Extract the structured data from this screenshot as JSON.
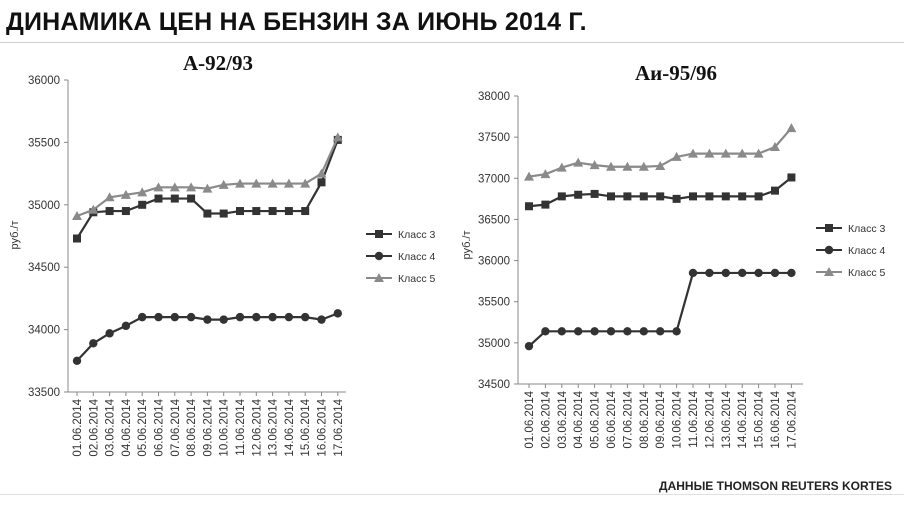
{
  "page": {
    "title": "ДИНАМИКА ЦЕН НА БЕНЗИН ЗА ИЮНЬ 2014 Г.",
    "source": "ДАННЫЕ THOMSON REUTERS KORTES"
  },
  "chart_data": [
    {
      "type": "line",
      "title": "А-92/93",
      "ylabel": "руб./т",
      "xlabel": "",
      "ylim": [
        33500,
        36000
      ],
      "yticks": [
        33500,
        34000,
        34500,
        35000,
        35500,
        36000
      ],
      "legend_position": "right",
      "grid": false,
      "categories": [
        "01.06.2014",
        "02.06.2014",
        "03.06.2014",
        "04.06.2014",
        "05.06.2014",
        "06.06.2014",
        "07.06.2014",
        "08.06.2014",
        "09.06.2014",
        "10.06.2014",
        "11.06.2014",
        "12.06.2014",
        "13.06.2014",
        "14.06.2014",
        "15.06.2014",
        "16.06.2014",
        "17.06.2014"
      ],
      "series": [
        {
          "name": "Класс 3",
          "marker": "square",
          "color": "#333333",
          "values": [
            34730,
            34940,
            34950,
            34950,
            35000,
            35050,
            35050,
            35050,
            34930,
            34930,
            34950,
            34950,
            34950,
            34950,
            34950,
            35180,
            35520
          ]
        },
        {
          "name": "Класс 4",
          "marker": "circle",
          "color": "#333333",
          "values": [
            33750,
            33890,
            33970,
            34030,
            34100,
            34100,
            34100,
            34100,
            34080,
            34080,
            34100,
            34100,
            34100,
            34100,
            34100,
            34080,
            34130
          ]
        },
        {
          "name": "Класс 5",
          "marker": "triangle",
          "color": "#8a8a8a",
          "values": [
            34910,
            34960,
            35060,
            35080,
            35100,
            35140,
            35140,
            35140,
            35130,
            35160,
            35170,
            35170,
            35170,
            35170,
            35170,
            35250,
            35540
          ]
        }
      ]
    },
    {
      "type": "line",
      "title": "Аи-95/96",
      "ylabel": "руб./т",
      "xlabel": "",
      "ylim": [
        34500,
        38000
      ],
      "yticks": [
        34500,
        35000,
        35500,
        36000,
        36500,
        37000,
        37500,
        38000
      ],
      "legend_position": "right",
      "grid": false,
      "categories": [
        "01.06.2014",
        "02.06.2014",
        "03.06.2014",
        "04.06.2014",
        "05.06.2014",
        "06.06.2014",
        "07.06.2014",
        "08.06.2014",
        "09.06.2014",
        "10.06.2014",
        "11.06.2014",
        "12.06.2014",
        "13.06.2014",
        "14.06.2014",
        "15.06.2014",
        "16.06.2014",
        "17.06.2014"
      ],
      "series": [
        {
          "name": "Класс 3",
          "marker": "square",
          "color": "#333333",
          "values": [
            36660,
            36680,
            36780,
            36800,
            36810,
            36780,
            36780,
            36780,
            36780,
            36750,
            36780,
            36780,
            36780,
            36780,
            36780,
            36850,
            37010
          ]
        },
        {
          "name": "Класс 4",
          "marker": "circle",
          "color": "#333333",
          "values": [
            34960,
            35140,
            35140,
            35140,
            35140,
            35140,
            35140,
            35140,
            35140,
            35140,
            35850,
            35850,
            35850,
            35850,
            35850,
            35850,
            35850
          ]
        },
        {
          "name": "Класс 5",
          "marker": "triangle",
          "color": "#8a8a8a",
          "values": [
            37020,
            37050,
            37130,
            37190,
            37160,
            37140,
            37140,
            37140,
            37150,
            37260,
            37300,
            37300,
            37300,
            37300,
            37300,
            37380,
            37610
          ]
        }
      ]
    }
  ]
}
